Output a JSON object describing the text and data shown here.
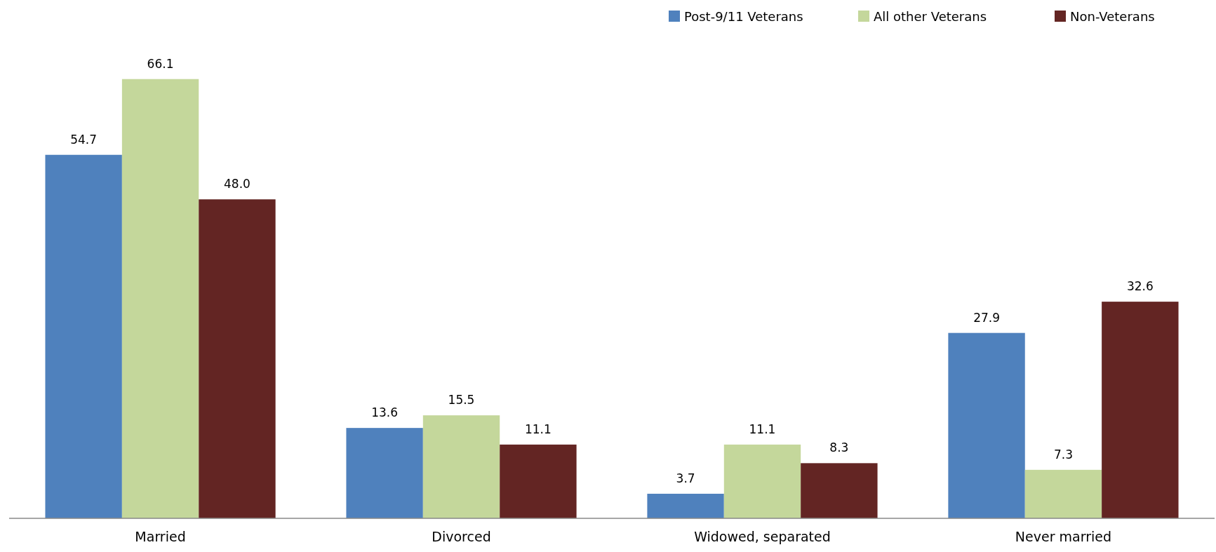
{
  "chart_data": {
    "type": "bar",
    "categories": [
      "Married",
      "Divorced",
      "Widowed, separated",
      "Never married"
    ],
    "series": [
      {
        "name": "Post-9/11 Veterans",
        "color": "#4f81bd",
        "values": [
          54.7,
          13.6,
          3.7,
          27.9
        ],
        "value_labels": [
          "54.7",
          "13.6",
          "3.7",
          "27.9"
        ]
      },
      {
        "name": "All other Veterans",
        "color": "#c4d79b",
        "values": [
          66.1,
          15.5,
          11.1,
          7.3
        ],
        "value_labels": [
          "66.1",
          "15.5",
          "11.1",
          "7.3"
        ]
      },
      {
        "name": "Non-Veterans",
        "color": "#632523",
        "values": [
          48.0,
          11.1,
          8.3,
          32.6
        ],
        "value_labels": [
          "48.0",
          "11.1",
          "8.3",
          "32.6"
        ]
      }
    ],
    "legend": "top right",
    "tick_labels": "x",
    "grid": false
  }
}
